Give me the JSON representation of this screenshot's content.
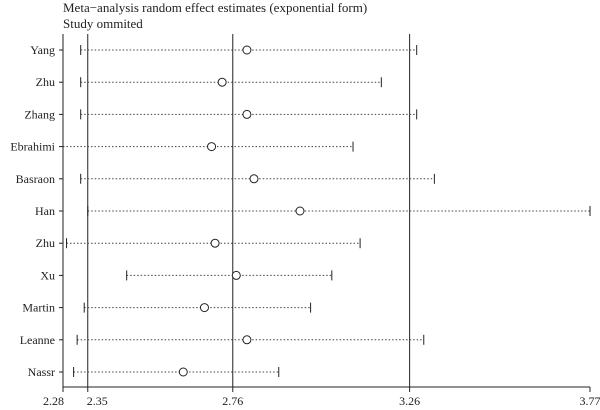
{
  "title": "Meta−analysis random effect estimates (exponential form)",
  "subtitle": "Study ommited",
  "chart_data": {
    "type": "forest",
    "title": "Meta−analysis random effect estimates (exponential form)",
    "subtitle": "Study ommited",
    "x_ticks": [
      2.28,
      2.35,
      2.76,
      3.26,
      3.77
    ],
    "x_tick_labels": [
      "2.28",
      "2.35",
      "2.76",
      "3.26",
      "3.77"
    ],
    "xlim": [
      2.28,
      3.77
    ],
    "reference_lines": [
      2.35,
      2.76,
      3.26
    ],
    "studies": [
      {
        "label": "Yang",
        "lower": 2.33,
        "estimate": 2.8,
        "upper": 3.28
      },
      {
        "label": "Zhu",
        "lower": 2.33,
        "estimate": 2.73,
        "upper": 3.18
      },
      {
        "label": "Zhang",
        "lower": 2.33,
        "estimate": 2.8,
        "upper": 3.28
      },
      {
        "label": "Ebrahimi",
        "lower": 2.28,
        "estimate": 2.7,
        "upper": 3.1
      },
      {
        "label": "Basraon",
        "lower": 2.33,
        "estimate": 2.82,
        "upper": 3.33
      },
      {
        "label": "Han",
        "lower": 2.35,
        "estimate": 2.95,
        "upper": 3.77
      },
      {
        "label": "Zhu",
        "lower": 2.29,
        "estimate": 2.71,
        "upper": 3.12
      },
      {
        "label": "Xu",
        "lower": 2.46,
        "estimate": 2.77,
        "upper": 3.04
      },
      {
        "label": "Martin",
        "lower": 2.34,
        "estimate": 2.68,
        "upper": 2.98
      },
      {
        "label": "Leanne",
        "lower": 2.32,
        "estimate": 2.8,
        "upper": 3.3
      },
      {
        "label": "Nassr",
        "lower": 2.31,
        "estimate": 2.62,
        "upper": 2.89
      }
    ]
  }
}
